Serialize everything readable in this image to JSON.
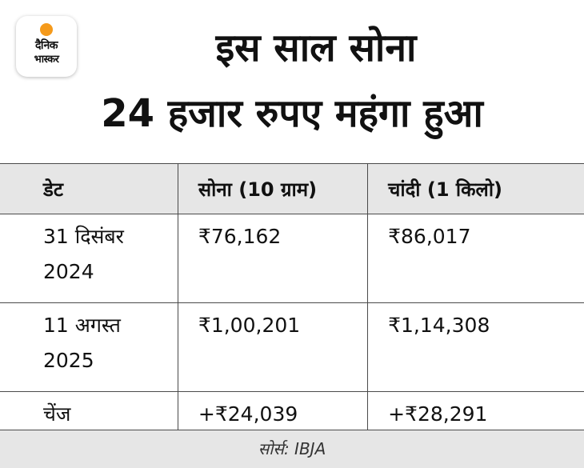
{
  "logo": {
    "line1": "दैनिक",
    "line2": "भास्कर"
  },
  "title": {
    "line1": "इस साल सोना",
    "line2": "24 हजार रुपए महंगा हुआ"
  },
  "table": {
    "headers": [
      "डेट",
      "सोना (10 ग्राम)",
      "चांदी (1 किलो)"
    ],
    "rows": [
      {
        "date": "31 दिसंबर 2024",
        "gold": "₹76,162",
        "silver": "₹86,017"
      },
      {
        "date": "11 अगस्त 2025",
        "gold": "₹1,00,201",
        "silver": "₹1,14,308"
      },
      {
        "date": "चेंज",
        "gold": "+₹24,039",
        "silver": "+₹28,291"
      }
    ]
  },
  "footer": {
    "source": "सोर्स: IBJA"
  },
  "colors": {
    "header_bg": "#e6e6e6",
    "logo_sun": "#f59a1b",
    "text": "#111111"
  }
}
